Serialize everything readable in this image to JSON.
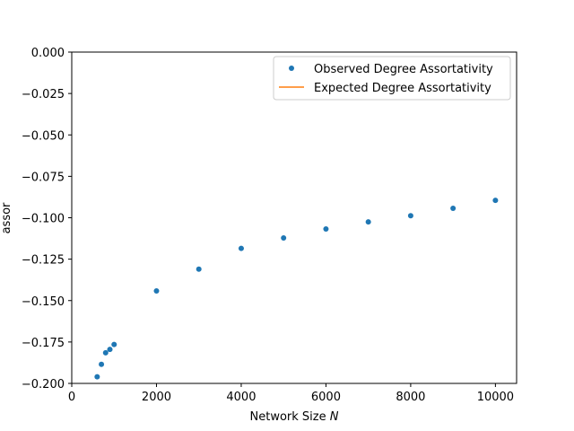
{
  "chart_data": {
    "type": "scatter",
    "title": "",
    "xlabel": "Network Size",
    "xlabel_var": "N",
    "ylabel": "assor",
    "xlim": [
      0,
      10500
    ],
    "ylim": [
      -0.2,
      0.0
    ],
    "xticks": [
      0,
      2000,
      4000,
      6000,
      8000,
      10000
    ],
    "yticks": [
      0.0,
      -0.025,
      -0.05,
      -0.075,
      -0.1,
      -0.125,
      -0.15,
      -0.175,
      -0.2
    ],
    "xtick_labels": [
      "0",
      "2000",
      "4000",
      "6000",
      "8000",
      "10000"
    ],
    "ytick_labels": [
      "0.000",
      "−0.025",
      "−0.050",
      "−0.075",
      "−0.100",
      "−0.125",
      "−0.150",
      "−0.175",
      "−0.200"
    ],
    "grid": false,
    "legend_position": "top-right",
    "series": [
      {
        "name": "Observed Degree Assortativity",
        "kind": "scatter",
        "color": "#1f77b4",
        "x": [
          600,
          700,
          800,
          900,
          1000,
          2000,
          3000,
          4000,
          5000,
          6000,
          7000,
          8000,
          9000,
          10000
        ],
        "y": [
          -0.196,
          -0.1885,
          -0.1815,
          -0.1795,
          -0.1765,
          -0.1442,
          -0.131,
          -0.1185,
          -0.1122,
          -0.1068,
          -0.1025,
          -0.0988,
          -0.0943,
          -0.0895
        ]
      },
      {
        "name": "Expected Degree Assortativity",
        "kind": "line",
        "color": "#ff7f0e",
        "x": [],
        "y": []
      }
    ]
  }
}
